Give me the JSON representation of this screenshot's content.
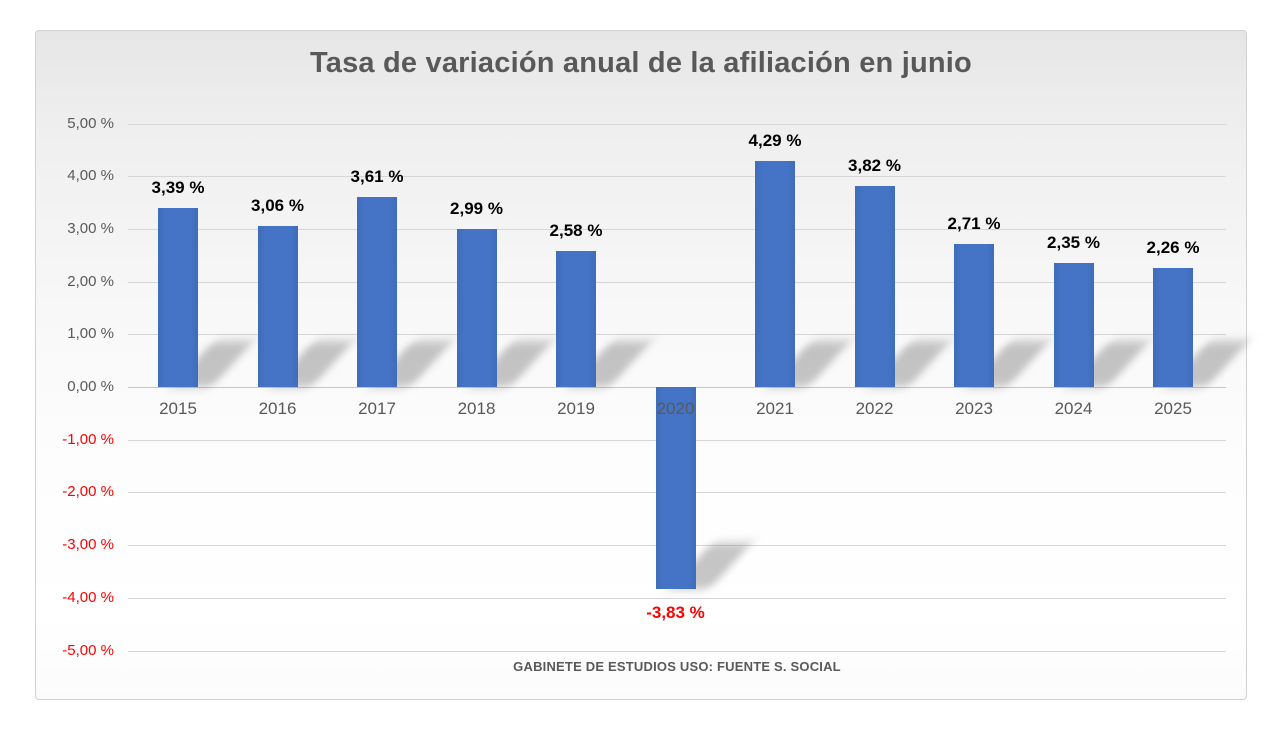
{
  "chart_data": {
    "type": "bar",
    "title": "Tasa de variación anual de la afiliación en junio",
    "annotation": "GABINETE DE ESTUDIOS USO: FUENTE S. SOCIAL",
    "categories": [
      "2015",
      "2016",
      "2017",
      "2018",
      "2019",
      "2020",
      "2021",
      "2022",
      "2023",
      "2024",
      "2025"
    ],
    "values": [
      3.39,
      3.06,
      3.61,
      2.99,
      2.58,
      -3.83,
      4.29,
      3.82,
      2.71,
      2.35,
      2.26
    ],
    "value_labels": [
      "3,39 %",
      "3,06 %",
      "3,61 %",
      "2,99 %",
      "2,58 %",
      "-3,83 %",
      "4,29 %",
      "3,82 %",
      "2,71 %",
      "2,35 %",
      "2,26 %"
    ],
    "xlabel": "",
    "ylabel": "",
    "ylim": [
      -5,
      5
    ],
    "ytick_step": 1,
    "ytick_labels": [
      "5,00 %",
      "4,00 %",
      "3,00 %",
      "2,00 %",
      "1,00 %",
      "0,00 %",
      "-1,00 %",
      "-2,00 %",
      "-3,00 %",
      "-4,00 %",
      "-5,00 %"
    ],
    "grid": true,
    "legend": "none",
    "colors": {
      "bar": "#4472C4",
      "positive_value_label": "#000000",
      "negative_value_label": "#FF0000",
      "axis_label": "#595959",
      "negative_axis_label": "#FF0000",
      "title": "#595959",
      "gridline": "#D6D6D6"
    }
  }
}
